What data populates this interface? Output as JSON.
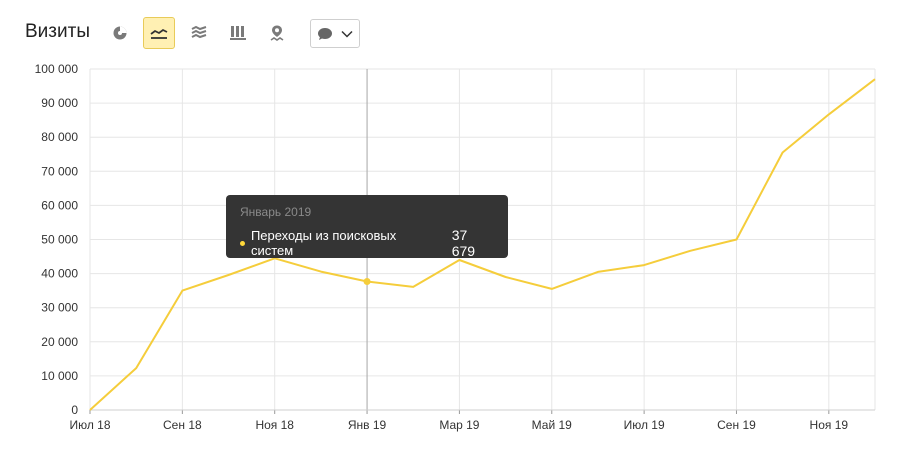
{
  "header": {
    "title": "Визиты",
    "toolbar": [
      {
        "name": "pie-chart-icon",
        "active": false
      },
      {
        "name": "line-chart-icon",
        "active": true
      },
      {
        "name": "stacked-area-icon",
        "active": false
      },
      {
        "name": "bar-chart-icon",
        "active": false
      },
      {
        "name": "map-pin-icon",
        "active": false
      }
    ],
    "comment_icon": "speech-bubble-icon"
  },
  "colors": {
    "line": "#f5cd3b",
    "grid": "#e6e6e6",
    "active_btn_bg": "#fff0b3",
    "tooltip_bg": "#343434"
  },
  "tooltip": {
    "date": "Январь 2019",
    "series": "Переходы из поисковых систем",
    "value": "37 679"
  },
  "chart_data": {
    "type": "line",
    "x": [
      "2018-07",
      "2018-08",
      "2018-09",
      "2018-10",
      "2018-11",
      "2018-12",
      "2019-01",
      "2019-02",
      "2019-03",
      "2019-04",
      "2019-05",
      "2019-06",
      "2019-07",
      "2019-08",
      "2019-09",
      "2019-10",
      "2019-11",
      "2019-12"
    ],
    "series": [
      {
        "name": "Переходы из поисковых систем",
        "values": [
          0,
          12300,
          35000,
          39600,
          44500,
          40600,
          37679,
          36100,
          44000,
          39000,
          35500,
          40500,
          42500,
          46700,
          50000,
          75500,
          86700,
          97000
        ]
      }
    ],
    "x_tick_labels": [
      "Июл 18",
      "Сен 18",
      "Ноя 18",
      "Янв 19",
      "Мар 19",
      "Май 19",
      "Июл 19",
      "Сен 19",
      "Ноя 19"
    ],
    "y_tick_labels": [
      "0",
      "10 000",
      "20 000",
      "30 000",
      "40 000",
      "50 000",
      "60 000",
      "70 000",
      "80 000",
      "90 000",
      "100 000"
    ],
    "ylim": [
      0,
      100000
    ],
    "grid": true,
    "highlight_index": 6
  }
}
